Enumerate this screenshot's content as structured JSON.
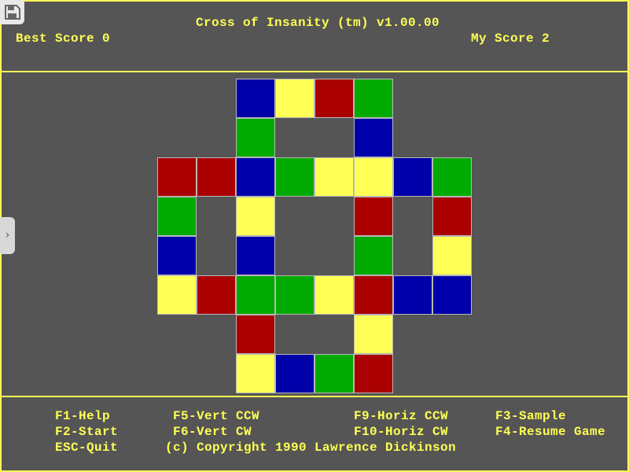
{
  "header": {
    "title": "Cross of Insanity (tm) v1.00.00",
    "best_score": "Best Score 0",
    "my_score": "My Score 2"
  },
  "colors": {
    "background": "#555555",
    "text": "#ffff55",
    "B": "#0000aa",
    "Y": "#ffff55",
    "R": "#aa0000",
    "G": "#00aa00"
  },
  "board": {
    "legend": {
      "B": "blue",
      "Y": "yellow",
      "R": "red",
      "G": "green",
      ".": "empty"
    },
    "rows": [
      "..BYRG..",
      "..G..B..",
      "RRBGYYBG",
      "G.Y..R.R",
      "B.B..G.Y",
      "YRGGYRBB",
      "..R..Y..",
      "..YBGR.."
    ]
  },
  "footer": {
    "f1": "F1-Help",
    "f2": "F2-Start",
    "esc": "ESC-Quit",
    "f5": "F5-Vert CCW",
    "f6": "F6-Vert CW",
    "f9": "F9-Horiz CCW",
    "f10": "F10-Horiz CW",
    "f3": "F3-Sample",
    "f4": "F4-Resume Game",
    "copyright": "(c) Copyright 1990 Lawrence Dickinson"
  },
  "overlay": {
    "save_icon": "floppy-disk-icon",
    "expand_icon": "chevron-right-icon",
    "expand_glyph": "›"
  }
}
